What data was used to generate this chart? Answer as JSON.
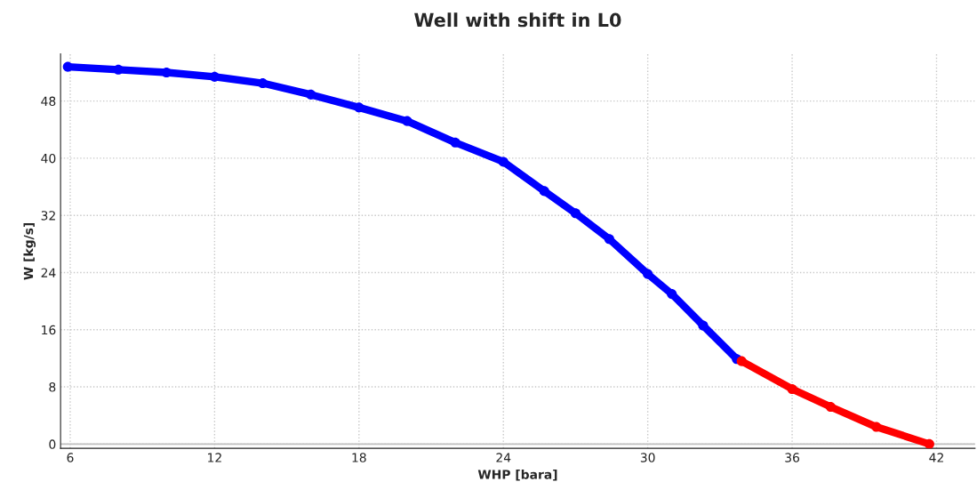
{
  "chart_data": {
    "type": "line",
    "title": "Well with shift in L0",
    "xlabel": "WHP [bara]",
    "ylabel": "W [kg/s]",
    "series": [
      {
        "color": "#0000ff",
        "x": [
          5.9,
          8,
          10,
          12,
          14,
          16,
          18,
          20,
          22,
          24,
          25.7,
          27,
          28.4,
          30,
          31,
          32.3,
          33.7
        ],
        "values": [
          52.8,
          52.4,
          52.0,
          51.4,
          50.5,
          48.9,
          47.1,
          45.2,
          42.2,
          39.5,
          35.4,
          32.3,
          28.7,
          23.8,
          21.0,
          16.6,
          11.9
        ]
      },
      {
        "color": "#ff0000",
        "x": [
          33.9,
          36,
          37.6,
          39.5,
          41.7
        ],
        "values": [
          11.6,
          7.7,
          5.2,
          2.4,
          0.0
        ]
      }
    ],
    "xlim": [
      5.6,
      43.6
    ],
    "xticks": [
      6,
      12,
      18,
      24,
      30,
      36,
      42
    ],
    "ylim": [
      -0.6,
      54.6
    ],
    "yticks": [
      0,
      8,
      16,
      24,
      32,
      40,
      48
    ],
    "ref_lines": [
      {
        "axis": "y",
        "value": 0,
        "color": "#c0c0c0"
      }
    ],
    "grid": true,
    "marker": "circle",
    "line_style": "solid"
  }
}
